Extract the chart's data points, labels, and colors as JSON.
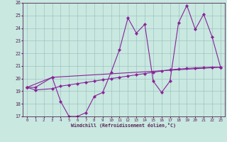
{
  "xlabel": "Windchill (Refroidissement éolien,°C)",
  "xlim": [
    -0.5,
    23.5
  ],
  "ylim": [
    17,
    26
  ],
  "yticks": [
    17,
    18,
    19,
    20,
    21,
    22,
    23,
    24,
    25,
    26
  ],
  "xticks": [
    0,
    1,
    2,
    3,
    4,
    5,
    6,
    7,
    8,
    9,
    10,
    11,
    12,
    13,
    14,
    15,
    16,
    17,
    18,
    19,
    20,
    21,
    22,
    23
  ],
  "bg_color": "#c8e8e0",
  "grid_color": "#99bbbb",
  "line_color": "#882299",
  "line1_x": [
    0,
    1,
    3,
    4,
    5,
    6,
    7,
    8,
    9,
    10,
    11,
    12,
    13,
    14,
    15,
    16,
    17,
    18,
    19,
    20,
    21,
    22,
    23
  ],
  "line1_y": [
    19.3,
    19.3,
    20.1,
    18.2,
    17.0,
    17.0,
    17.3,
    18.6,
    18.9,
    20.5,
    22.3,
    24.8,
    23.6,
    24.3,
    19.8,
    18.9,
    19.8,
    24.4,
    25.8,
    23.9,
    25.1,
    23.3,
    20.9
  ],
  "line2_x": [
    0,
    1,
    3,
    4,
    5,
    6,
    7,
    8,
    9,
    10,
    11,
    12,
    13,
    14,
    15,
    16,
    17,
    18,
    19,
    20,
    21,
    22,
    23
  ],
  "line2_y": [
    19.3,
    19.1,
    19.2,
    19.4,
    19.5,
    19.6,
    19.7,
    19.8,
    19.9,
    20.0,
    20.1,
    20.2,
    20.3,
    20.4,
    20.5,
    20.6,
    20.7,
    20.75,
    20.8,
    20.85,
    20.87,
    20.9,
    20.9
  ],
  "line3_x": [
    0,
    3,
    23
  ],
  "line3_y": [
    19.3,
    20.1,
    20.9
  ]
}
